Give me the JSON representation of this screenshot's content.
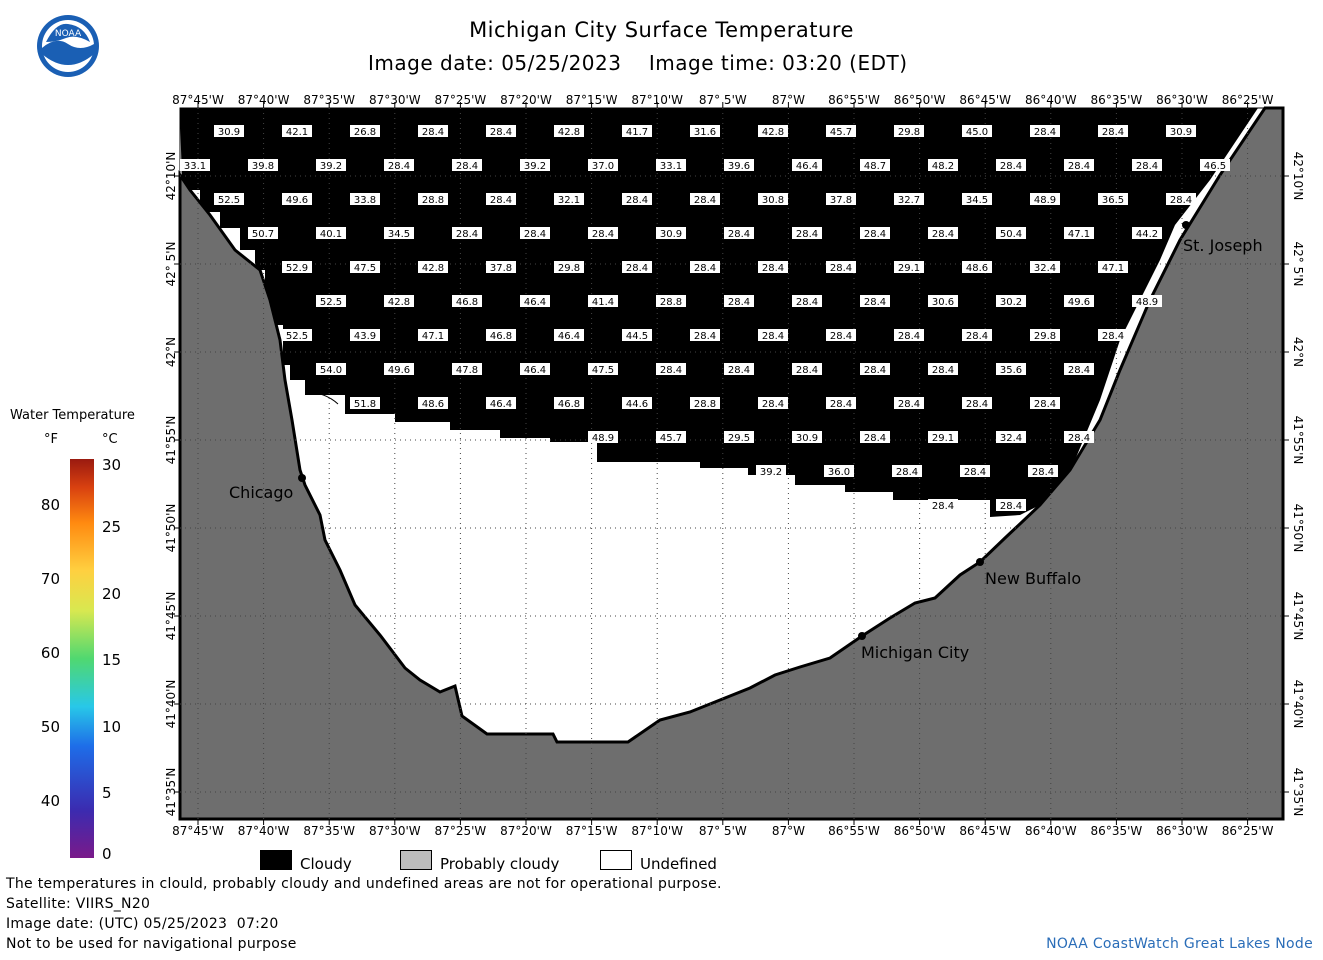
{
  "title": "Michigan City Surface Temperature",
  "image_date_label": "Image date: 05/25/2023",
  "image_time_label": "Image time: 03:20 (EDT)",
  "logo_text": "NOAA",
  "lon_labels": [
    "87°45'W",
    "87°40'W",
    "87°35'W",
    "87°30'W",
    "87°25'W",
    "87°20'W",
    "87°15'W",
    "87°10'W",
    "87° 5'W",
    "87°W",
    "86°55'W",
    "86°50'W",
    "86°45'W",
    "86°40'W",
    "86°35'W",
    "86°30'W",
    "86°25'W"
  ],
  "lat_labels": [
    "42°10'N",
    "42° 5'N",
    "42°N",
    "41°55'N",
    "41°50'N",
    "41°45'N",
    "41°40'N",
    "41°35'N"
  ],
  "cities": [
    "Chicago",
    "St. Joseph",
    "New Buffalo",
    "Michigan City"
  ],
  "legend": {
    "title": "Water Temperature",
    "unit_f": "°F",
    "unit_c": "°C",
    "f_ticks": [
      "80",
      "70",
      "60",
      "50",
      "40"
    ],
    "c_ticks": [
      "30",
      "25",
      "20",
      "15",
      "10",
      "5",
      "0"
    ]
  },
  "key": {
    "cloudy": "Cloudy",
    "probably_cloudy": "Probably cloudy",
    "undefined": "Undefined"
  },
  "footer": {
    "line1": "The temperatures in clould, probably cloudy and undefined areas are not for operational purpose.",
    "line2": "Satellite: VIIRS_N20",
    "line3": "Image date: (UTC) 05/25/2023  07:20",
    "line4": "Not to be used for navigational purpose",
    "credit": "NOAA CoastWatch Great Lakes Node"
  },
  "colors": {
    "land": "#6e6e6e",
    "cloud": "#000000",
    "undefined": "#ffffff",
    "credit": "#2a6db8"
  },
  "temp_rows": [
    [
      "30.9",
      "42.1",
      "26.8",
      "28.4",
      "28.4",
      "42.8",
      "41.7",
      "31.6",
      "42.8",
      "45.7",
      "29.8",
      "45.0",
      "28.4",
      "28.4",
      "30.9"
    ],
    [
      "33.1",
      "39.8",
      "39.2",
      "28.4",
      "28.4",
      "39.2",
      "37.0",
      "33.1",
      "39.6",
      "46.4",
      "48.7",
      "48.2",
      "28.4",
      "28.4",
      "28.4",
      "46.5"
    ],
    [
      "52.5",
      "49.6",
      "33.8",
      "28.8",
      "28.4",
      "32.1",
      "28.4",
      "28.4",
      "30.8",
      "37.8",
      "32.7",
      "34.5",
      "48.9",
      "36.5",
      "28.4"
    ],
    [
      "50.7",
      "40.1",
      "34.5",
      "28.4",
      "28.4",
      "28.4",
      "30.9",
      "28.4",
      "28.4",
      "28.4",
      "28.4",
      "50.4",
      "47.1",
      "44.2"
    ],
    [
      "52.9",
      "47.5",
      "42.8",
      "37.8",
      "29.8",
      "28.4",
      "28.4",
      "28.4",
      "28.4",
      "29.1",
      "48.6",
      "32.4",
      "47.1"
    ],
    [
      "52.5",
      "42.8",
      "46.8",
      "46.4",
      "41.4",
      "28.8",
      "28.4",
      "28.4",
      "28.4",
      "30.6",
      "30.2",
      "49.6",
      "48.9"
    ],
    [
      "52.5",
      "43.9",
      "47.1",
      "46.8",
      "46.4",
      "44.5",
      "28.4",
      "28.4",
      "28.4",
      "28.4",
      "28.4",
      "29.8",
      "28.4"
    ],
    [
      "54.0",
      "49.6",
      "47.8",
      "46.4",
      "47.5",
      "28.4",
      "28.4",
      "28.4",
      "28.4",
      "28.4",
      "35.6",
      "28.4"
    ],
    [
      "51.8",
      "48.6",
      "46.4",
      "46.8",
      "44.6",
      "28.8",
      "28.4",
      "28.4",
      "28.4",
      "28.4",
      "28.4"
    ],
    [
      "48.9",
      "45.7",
      "29.5",
      "30.9",
      "28.4",
      "29.1",
      "32.4",
      "28.4"
    ],
    [
      "39.2",
      "36.0",
      "28.4",
      "28.4",
      "28.4"
    ],
    [
      "28.4",
      "28.4"
    ]
  ]
}
